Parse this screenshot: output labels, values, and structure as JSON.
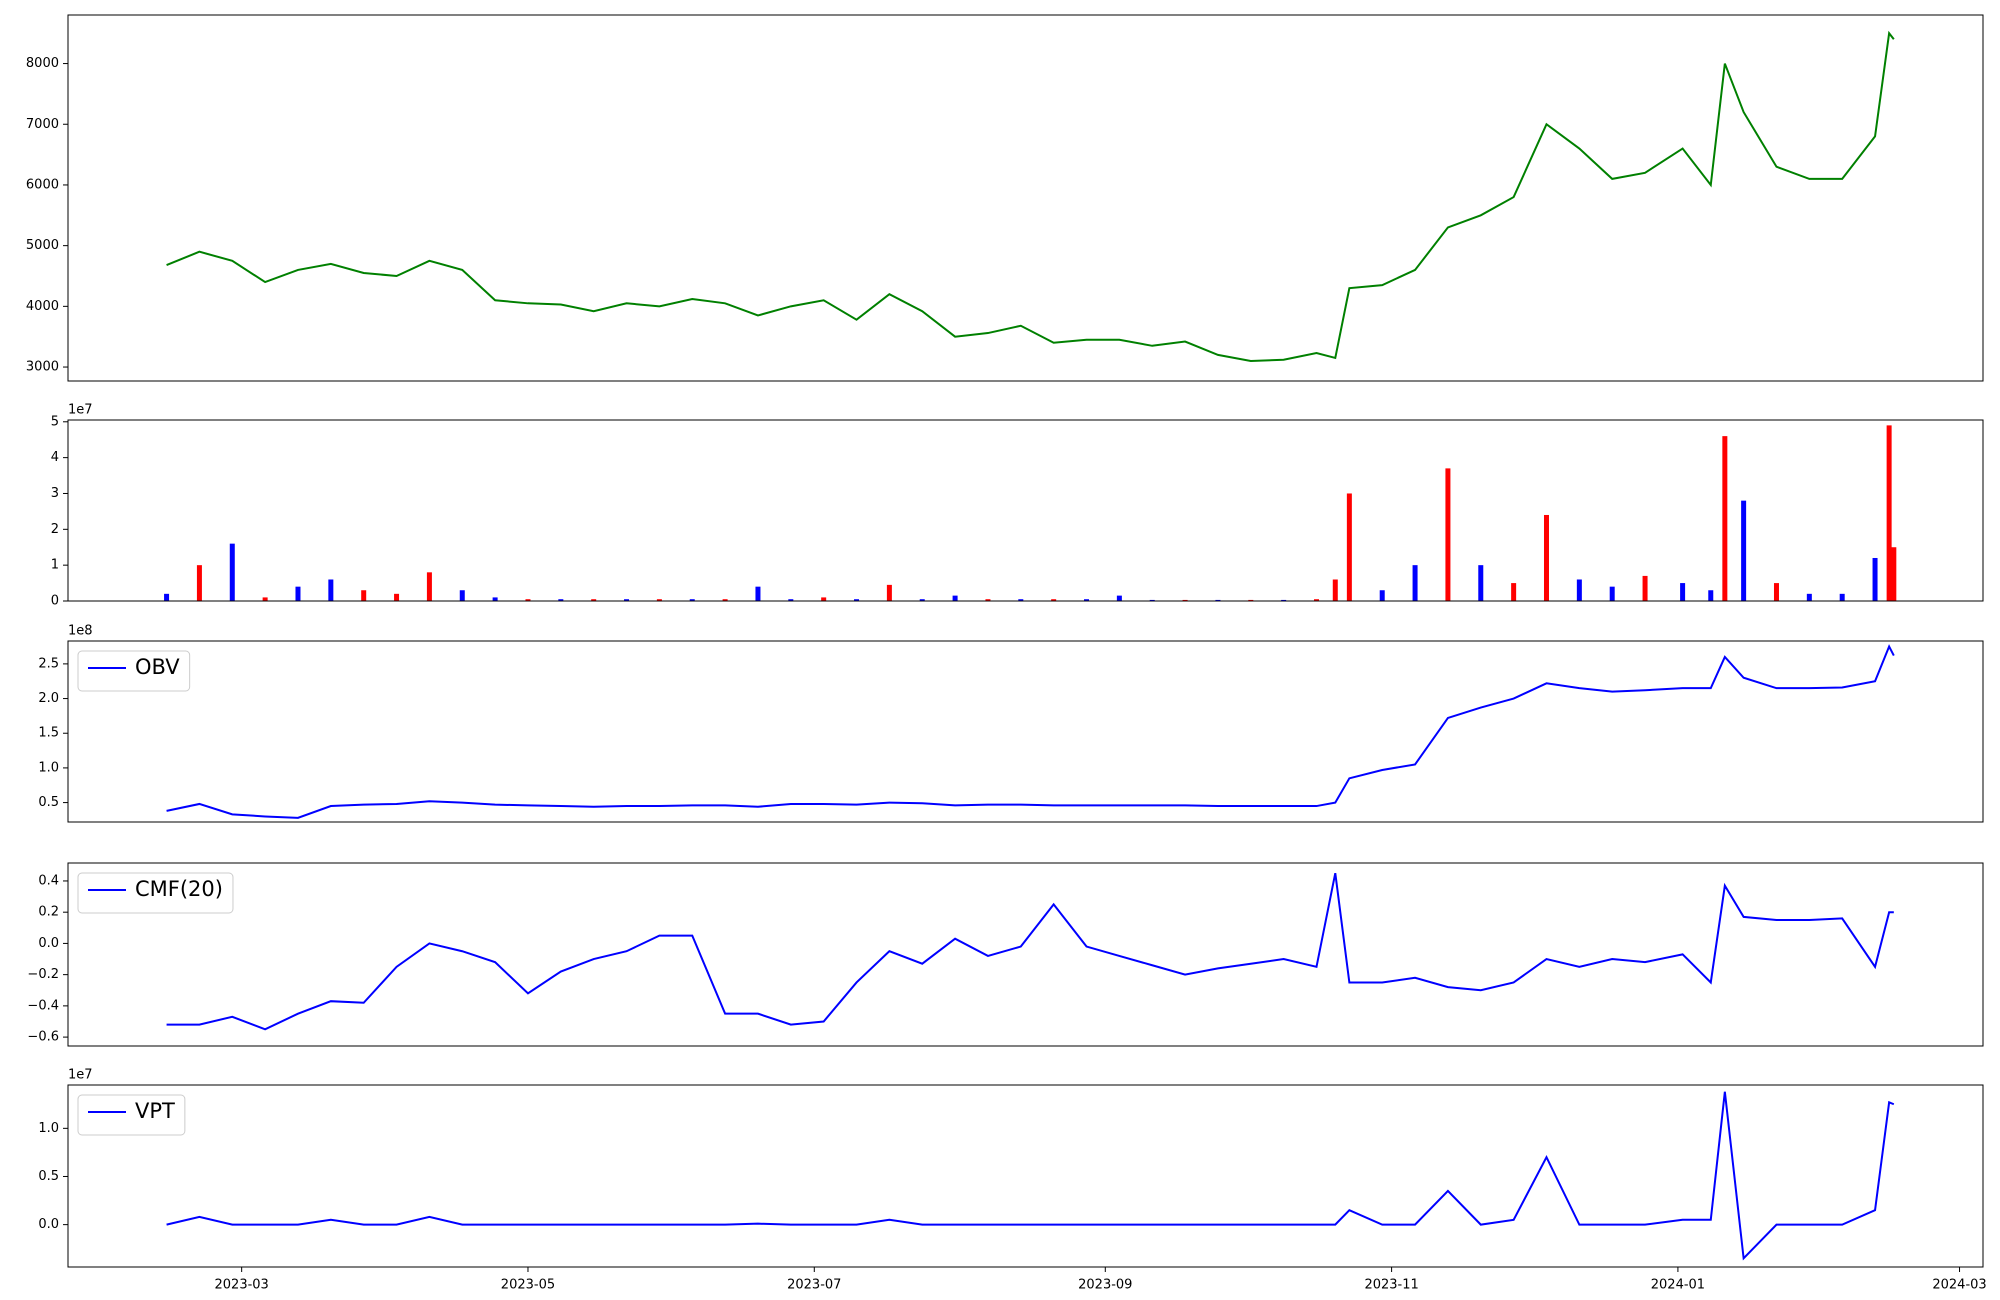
{
  "chart_data": [
    {
      "type": "line",
      "x": [
        "2023-02-13",
        "2023-02-20",
        "2023-02-27",
        "2023-03-06",
        "2023-03-13",
        "2023-03-20",
        "2023-03-27",
        "2023-04-03",
        "2023-04-10",
        "2023-04-17",
        "2023-04-24",
        "2023-05-01",
        "2023-05-08",
        "2023-05-15",
        "2023-05-22",
        "2023-05-29",
        "2023-06-05",
        "2023-06-12",
        "2023-06-19",
        "2023-06-26",
        "2023-07-03",
        "2023-07-10",
        "2023-07-17",
        "2023-07-24",
        "2023-07-31",
        "2023-08-07",
        "2023-08-14",
        "2023-08-21",
        "2023-08-28",
        "2023-09-04",
        "2023-09-11",
        "2023-09-18",
        "2023-09-25",
        "2023-10-02",
        "2023-10-09",
        "2023-10-16",
        "2023-10-20",
        "2023-10-23",
        "2023-10-30",
        "2023-11-06",
        "2023-11-13",
        "2023-11-20",
        "2023-11-27",
        "2023-12-04",
        "2023-12-11",
        "2023-12-18",
        "2023-12-25",
        "2024-01-02",
        "2024-01-08",
        "2024-01-11",
        "2024-01-15",
        "2024-01-22",
        "2024-01-29",
        "2024-02-05",
        "2024-02-12",
        "2024-02-15",
        "2024-02-16"
      ],
      "xlim": [
        "2023-01-23",
        "2024-03-06"
      ],
      "ylim": [
        2770,
        8800
      ],
      "yticks": [
        3000,
        4000,
        5000,
        6000,
        7000,
        8000
      ],
      "series": [
        {
          "color": "green",
          "values": [
            4680,
            4900,
            4750,
            4400,
            4600,
            4700,
            4550,
            4500,
            4750,
            4600,
            4100,
            4050,
            4030,
            3920,
            4050,
            4000,
            4120,
            4050,
            3850,
            4000,
            4100,
            3780,
            4200,
            3920,
            3500,
            3560,
            3680,
            3400,
            3450,
            3450,
            3350,
            3420,
            3200,
            3100,
            3120,
            3230,
            3150,
            4300,
            4350,
            4600,
            5300,
            5500,
            5800,
            7000,
            6600,
            6100,
            6200,
            6600,
            6000,
            8000,
            7200,
            6300,
            6100,
            6100,
            6800,
            8500,
            8400
          ]
        }
      ]
    },
    {
      "type": "bar",
      "x": [
        "2023-02-13",
        "2023-02-20",
        "2023-02-27",
        "2023-03-06",
        "2023-03-13",
        "2023-03-20",
        "2023-03-27",
        "2023-04-03",
        "2023-04-10",
        "2023-04-17",
        "2023-04-24",
        "2023-05-01",
        "2023-05-08",
        "2023-05-15",
        "2023-05-22",
        "2023-05-29",
        "2023-06-05",
        "2023-06-12",
        "2023-06-19",
        "2023-06-26",
        "2023-07-03",
        "2023-07-10",
        "2023-07-17",
        "2023-07-24",
        "2023-07-31",
        "2023-08-07",
        "2023-08-14",
        "2023-08-21",
        "2023-08-28",
        "2023-09-04",
        "2023-09-11",
        "2023-09-18",
        "2023-09-25",
        "2023-10-02",
        "2023-10-09",
        "2023-10-16",
        "2023-10-20",
        "2023-10-23",
        "2023-10-30",
        "2023-11-06",
        "2023-11-13",
        "2023-11-20",
        "2023-11-27",
        "2023-12-04",
        "2023-12-11",
        "2023-12-18",
        "2023-12-25",
        "2024-01-02",
        "2024-01-08",
        "2024-01-11",
        "2024-01-15",
        "2024-01-22",
        "2024-01-29",
        "2024-02-05",
        "2024-02-12",
        "2024-02-15",
        "2024-02-16"
      ],
      "xlim": [
        "2023-01-23",
        "2024-03-06"
      ],
      "ylim": [
        0,
        5.05
      ],
      "yticks": [
        0,
        1,
        2,
        3,
        4,
        5
      ],
      "offset_label": "1e7",
      "series": [
        {
          "color": "red",
          "values": [
            null,
            1.0,
            null,
            0.1,
            null,
            null,
            0.3,
            0.2,
            0.8,
            null,
            null,
            0.05,
            null,
            0.05,
            null,
            0.05,
            null,
            0.05,
            null,
            null,
            0.1,
            null,
            0.45,
            null,
            null,
            0.05,
            null,
            0.05,
            null,
            null,
            null,
            0.03,
            null,
            0.03,
            null,
            0.05,
            0.6,
            3.0,
            null,
            null,
            3.7,
            null,
            0.5,
            2.4,
            null,
            null,
            0.7,
            null,
            null,
            4.6,
            null,
            0.5,
            null,
            null,
            null,
            4.9,
            1.5
          ]
        },
        {
          "color": "blue",
          "values": [
            0.2,
            null,
            1.6,
            null,
            0.4,
            0.6,
            null,
            null,
            null,
            0.3,
            0.1,
            null,
            0.05,
            null,
            0.05,
            null,
            0.05,
            null,
            0.4,
            0.05,
            null,
            0.05,
            null,
            0.05,
            0.15,
            null,
            0.05,
            null,
            0.05,
            0.15,
            0.03,
            null,
            0.03,
            null,
            0.03,
            null,
            null,
            null,
            0.3,
            1.0,
            null,
            1.0,
            null,
            null,
            0.6,
            0.4,
            null,
            0.5,
            0.3,
            null,
            2.8,
            null,
            0.2,
            0.2,
            1.2,
            null,
            null
          ]
        }
      ]
    },
    {
      "type": "line",
      "x": [
        "2023-02-13",
        "2023-02-20",
        "2023-02-27",
        "2023-03-06",
        "2023-03-13",
        "2023-03-20",
        "2023-03-27",
        "2023-04-03",
        "2023-04-10",
        "2023-04-17",
        "2023-04-24",
        "2023-05-01",
        "2023-05-08",
        "2023-05-15",
        "2023-05-22",
        "2023-05-29",
        "2023-06-05",
        "2023-06-12",
        "2023-06-19",
        "2023-06-26",
        "2023-07-03",
        "2023-07-10",
        "2023-07-17",
        "2023-07-24",
        "2023-07-31",
        "2023-08-07",
        "2023-08-14",
        "2023-08-21",
        "2023-08-28",
        "2023-09-04",
        "2023-09-11",
        "2023-09-18",
        "2023-09-25",
        "2023-10-02",
        "2023-10-09",
        "2023-10-16",
        "2023-10-20",
        "2023-10-23",
        "2023-10-30",
        "2023-11-06",
        "2023-11-13",
        "2023-11-20",
        "2023-11-27",
        "2023-12-04",
        "2023-12-11",
        "2023-12-18",
        "2023-12-25",
        "2024-01-02",
        "2024-01-08",
        "2024-01-11",
        "2024-01-15",
        "2024-01-22",
        "2024-01-29",
        "2024-02-05",
        "2024-02-12",
        "2024-02-15",
        "2024-02-16"
      ],
      "xlim": [
        "2023-01-23",
        "2024-03-06"
      ],
      "ylim": [
        0.22,
        2.83
      ],
      "yticks": [
        0.5,
        {
          "value": 1,
          "label": "1.0"
        },
        1.5,
        {
          "value": 2,
          "label": "2.0"
        },
        2.5
      ],
      "offset_label": "1e8",
      "legend": "upper left",
      "series": [
        {
          "name": "OBV",
          "color": "blue",
          "values": [
            0.38,
            0.48,
            0.33,
            0.3,
            0.28,
            0.45,
            0.47,
            0.48,
            0.52,
            0.5,
            0.47,
            0.46,
            0.45,
            0.44,
            0.45,
            0.45,
            0.46,
            0.46,
            0.44,
            0.48,
            0.48,
            0.47,
            0.5,
            0.49,
            0.46,
            0.47,
            0.47,
            0.46,
            0.46,
            0.46,
            0.46,
            0.46,
            0.45,
            0.45,
            0.45,
            0.45,
            0.5,
            0.85,
            0.97,
            1.05,
            1.72,
            1.87,
            2.0,
            2.22,
            2.15,
            2.1,
            2.12,
            2.15,
            2.15,
            2.6,
            2.3,
            2.15,
            2.15,
            2.16,
            2.25,
            2.75,
            2.62
          ]
        }
      ]
    },
    {
      "type": "line",
      "x": [
        "2023-02-13",
        "2023-02-20",
        "2023-02-27",
        "2023-03-06",
        "2023-03-13",
        "2023-03-20",
        "2023-03-27",
        "2023-04-03",
        "2023-04-10",
        "2023-04-17",
        "2023-04-24",
        "2023-05-01",
        "2023-05-08",
        "2023-05-15",
        "2023-05-22",
        "2023-05-29",
        "2023-06-05",
        "2023-06-12",
        "2023-06-19",
        "2023-06-26",
        "2023-07-03",
        "2023-07-10",
        "2023-07-17",
        "2023-07-24",
        "2023-07-31",
        "2023-08-07",
        "2023-08-14",
        "2023-08-21",
        "2023-08-28",
        "2023-09-04",
        "2023-09-11",
        "2023-09-18",
        "2023-09-25",
        "2023-10-02",
        "2023-10-09",
        "2023-10-16",
        "2023-10-20",
        "2023-10-23",
        "2023-10-30",
        "2023-11-06",
        "2023-11-13",
        "2023-11-20",
        "2023-11-27",
        "2023-12-04",
        "2023-12-11",
        "2023-12-18",
        "2023-12-25",
        "2024-01-02",
        "2024-01-08",
        "2024-01-11",
        "2024-01-15",
        "2024-01-22",
        "2024-01-29",
        "2024-02-05",
        "2024-02-12",
        "2024-02-15",
        "2024-02-16"
      ],
      "xlim": [
        "2023-01-23",
        "2024-03-06"
      ],
      "ylim": [
        -0.657,
        0.515
      ],
      "yticks": [
        {
          "value": -0.6,
          "label": "−0.6"
        },
        {
          "value": -0.4,
          "label": "−0.4"
        },
        {
          "value": -0.2,
          "label": "−0.2"
        },
        {
          "value": 0,
          "label": "0.0"
        },
        0.2,
        0.4
      ],
      "legend": "upper left",
      "series": [
        {
          "name": "CMF(20)",
          "color": "blue",
          "values": [
            -0.52,
            -0.52,
            -0.47,
            -0.55,
            -0.45,
            -0.37,
            -0.38,
            -0.15,
            0.0,
            -0.05,
            -0.12,
            -0.32,
            -0.18,
            -0.1,
            -0.05,
            0.05,
            0.05,
            -0.45,
            -0.45,
            -0.52,
            -0.5,
            -0.25,
            -0.05,
            -0.13,
            0.03,
            -0.08,
            -0.02,
            0.25,
            -0.02,
            -0.08,
            -0.14,
            -0.2,
            -0.16,
            -0.13,
            -0.1,
            -0.15,
            0.45,
            -0.25,
            -0.25,
            -0.22,
            -0.28,
            -0.3,
            -0.25,
            -0.1,
            -0.15,
            -0.1,
            -0.12,
            -0.07,
            -0.25,
            0.37,
            0.17,
            0.15,
            0.15,
            0.16,
            -0.15,
            0.2,
            0.2
          ]
        }
      ]
    },
    {
      "type": "line",
      "x": [
        "2023-02-13",
        "2023-02-20",
        "2023-02-27",
        "2023-03-06",
        "2023-03-13",
        "2023-03-20",
        "2023-03-27",
        "2023-04-03",
        "2023-04-10",
        "2023-04-17",
        "2023-04-24",
        "2023-05-01",
        "2023-05-08",
        "2023-05-15",
        "2023-05-22",
        "2023-05-29",
        "2023-06-05",
        "2023-06-12",
        "2023-06-19",
        "2023-06-26",
        "2023-07-03",
        "2023-07-10",
        "2023-07-17",
        "2023-07-24",
        "2023-07-31",
        "2023-08-07",
        "2023-08-14",
        "2023-08-21",
        "2023-08-28",
        "2023-09-04",
        "2023-09-11",
        "2023-09-18",
        "2023-09-25",
        "2023-10-02",
        "2023-10-09",
        "2023-10-16",
        "2023-10-20",
        "2023-10-23",
        "2023-10-30",
        "2023-11-06",
        "2023-11-13",
        "2023-11-20",
        "2023-11-27",
        "2023-12-04",
        "2023-12-11",
        "2023-12-18",
        "2023-12-25",
        "2024-01-02",
        "2024-01-08",
        "2024-01-11",
        "2024-01-15",
        "2024-01-22",
        "2024-01-29",
        "2024-02-05",
        "2024-02-12",
        "2024-02-15",
        "2024-02-16"
      ],
      "xlim": [
        "2023-01-23",
        "2024-03-06"
      ],
      "ylim": [
        -0.44,
        1.45
      ],
      "yticks": [
        {
          "value": 0,
          "label": "0.0"
        },
        0.5,
        {
          "value": 1,
          "label": "1.0"
        }
      ],
      "offset_label": "1e7",
      "legend": "upper left",
      "xticks": [
        "2023-03",
        "2023-05",
        "2023-07",
        "2023-09",
        "2023-11",
        "2024-01",
        "2024-03"
      ],
      "series": [
        {
          "name": "VPT",
          "color": "blue",
          "values": [
            0,
            0.08,
            0,
            0,
            0,
            0.05,
            0,
            0,
            0.08,
            0,
            0,
            0,
            0,
            0,
            0,
            0,
            0,
            0,
            0.01,
            0,
            0,
            0,
            0.05,
            0,
            0,
            0,
            0,
            0,
            0,
            0,
            0,
            0,
            0,
            0,
            0,
            0,
            0,
            0.15,
            0,
            0,
            0.35,
            0,
            0.05,
            0.7,
            0,
            0,
            0,
            0.05,
            0.05,
            1.38,
            -0.35,
            0,
            0,
            0,
            0.15,
            1.27,
            1.25
          ]
        }
      ]
    }
  ]
}
